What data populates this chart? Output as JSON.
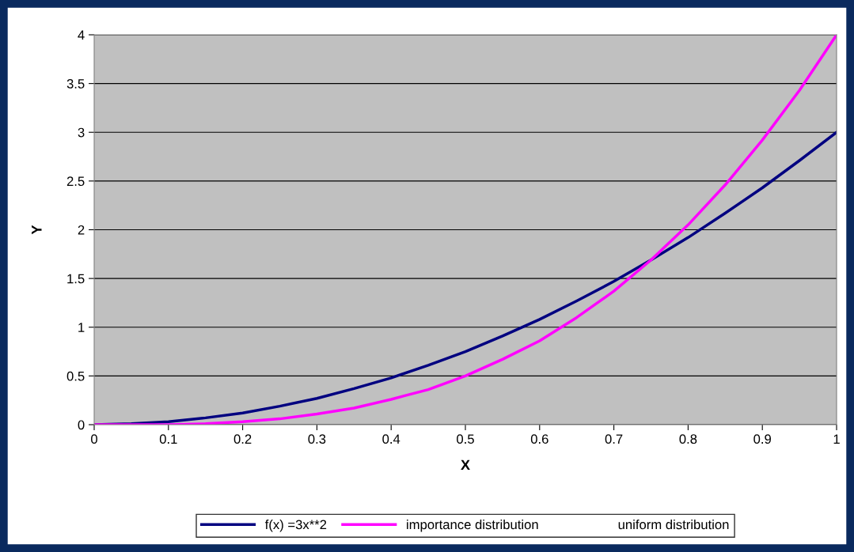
{
  "chart_data": {
    "type": "line",
    "xlabel": "X",
    "ylabel": "Y",
    "x": [
      0,
      0.05,
      0.1,
      0.15,
      0.2,
      0.25,
      0.3,
      0.35,
      0.4,
      0.45,
      0.5,
      0.55,
      0.6,
      0.65,
      0.7,
      0.75,
      0.8,
      0.85,
      0.9,
      0.95,
      1
    ],
    "series": [
      {
        "name": "f(x) =3x**2",
        "color": "#000080",
        "values": [
          0,
          0.01,
          0.03,
          0.07,
          0.12,
          0.19,
          0.27,
          0.37,
          0.48,
          0.61,
          0.75,
          0.91,
          1.08,
          1.27,
          1.47,
          1.69,
          1.92,
          2.17,
          2.43,
          2.71,
          3
        ]
      },
      {
        "name": "importance distribution",
        "color": "#ff00ff",
        "values": [
          0,
          0,
          0,
          0.01,
          0.03,
          0.06,
          0.11,
          0.17,
          0.26,
          0.36,
          0.5,
          0.67,
          0.86,
          1.1,
          1.37,
          1.69,
          2.05,
          2.46,
          2.92,
          3.43,
          4
        ]
      },
      {
        "name": "uniform distribution",
        "values": [
          null,
          null,
          null,
          null,
          null,
          null,
          null,
          null,
          null,
          null,
          null,
          null,
          null,
          null,
          null,
          null,
          null,
          null,
          null,
          null,
          null
        ]
      }
    ],
    "xlim": [
      0,
      1
    ],
    "xticks": [
      0,
      0.1,
      0.2,
      0.3,
      0.4,
      0.5,
      0.6,
      0.7,
      0.8,
      0.9,
      1
    ],
    "ylim": [
      0,
      4
    ],
    "yticks": [
      0,
      0.5,
      1,
      1.5,
      2,
      2.5,
      3,
      3.5,
      4
    ],
    "grid": "y",
    "legend": "bottom",
    "marker": "none",
    "line_style": "solid"
  }
}
